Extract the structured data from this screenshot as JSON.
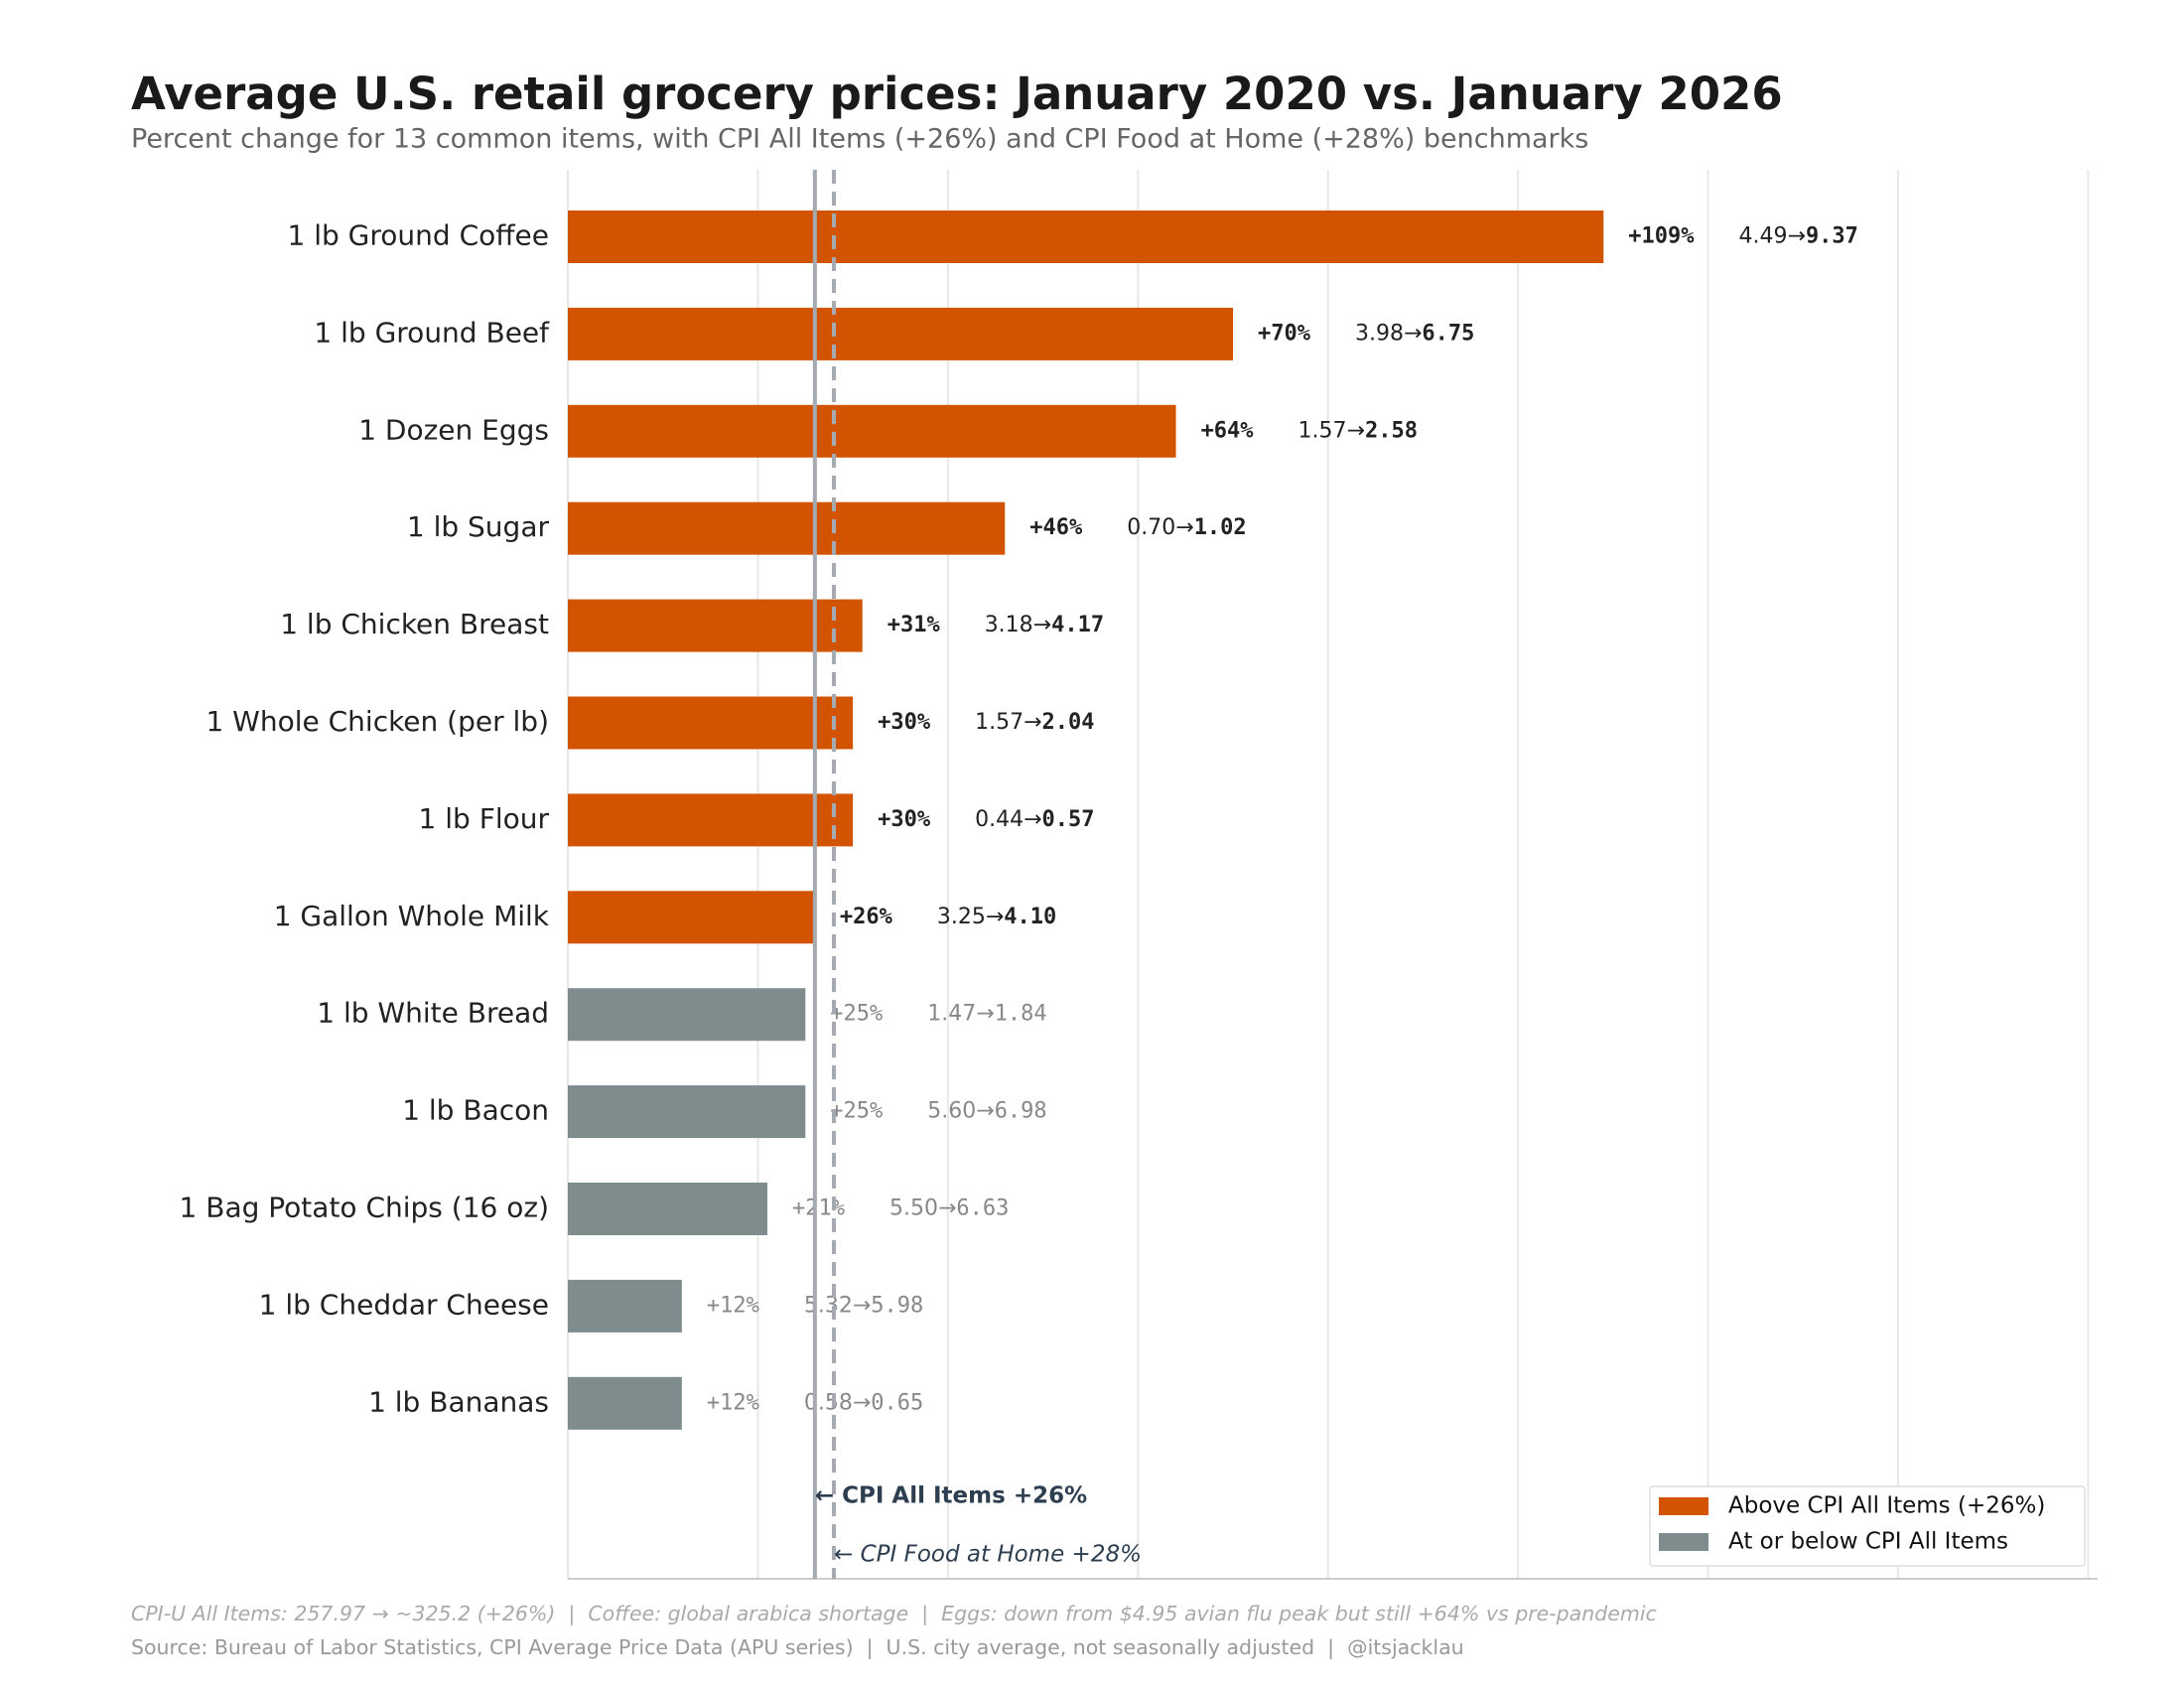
{
  "chart_data": {
    "type": "barh",
    "title": "Average U.S. retail grocery prices: January 2020 vs. January 2026",
    "subtitle": "Percent change for 13 common items, with CPI All Items (+26%) and CPI Food at Home (+28%) benchmarks",
    "categories": [
      "1 lb Ground Coffee",
      "1 lb Ground Beef",
      "1 Dozen Eggs",
      "1 lb Sugar",
      "1 lb Chicken Breast",
      "1 Whole Chicken (per lb)",
      "1 lb Flour",
      "1 Gallon Whole Milk",
      "1 lb White Bread",
      "1 lb Bacon",
      "1 Bag Potato Chips (16 oz)",
      "1 lb Cheddar Cheese",
      "1 lb Bananas"
    ],
    "values": [
      109,
      70,
      64,
      46,
      31,
      30,
      30,
      26,
      25,
      25,
      21,
      12,
      12
    ],
    "value_labels": [
      "+109%",
      "+70%",
      "+64%",
      "+46%",
      "+31%",
      "+30%",
      "+30%",
      "+26%",
      "+25%",
      "+25%",
      "+21%",
      "+12%",
      "+12%"
    ],
    "price_2020_labels": [
      "4.49",
      "3.98",
      "1.57",
      "0.70",
      "3.18",
      "1.57",
      "0.44",
      "3.25",
      "1.47",
      "5.60",
      "5.50",
      "5.32",
      "0.58"
    ],
    "price_2026_labels": [
      "9.37",
      "6.75",
      "2.58",
      "1.02",
      "4.17",
      "2.04",
      "0.57",
      "4.10",
      "1.84",
      "6.98",
      "6.63",
      "5.98",
      "0.65"
    ],
    "arrow": "→",
    "groups": [
      0,
      0,
      0,
      0,
      0,
      0,
      0,
      0,
      1,
      1,
      1,
      1,
      1
    ],
    "legend": [
      {
        "label": "Above CPI All Items (+26%)",
        "color": "#d35400"
      },
      {
        "label": "At or below CPI All Items",
        "color": "#7f8c8d"
      }
    ],
    "legend_position": "lower right",
    "xlim": [
      0,
      161
    ],
    "xticks": [
      0,
      20,
      40,
      60,
      80,
      100,
      120,
      140,
      160
    ],
    "grid": true,
    "reference_lines": [
      {
        "value": 26,
        "label": "← CPI All Items +26%",
        "style": "solid"
      },
      {
        "value": 28,
        "label": "← CPI Food at Home +28%",
        "style": "dashed"
      }
    ],
    "note": "CPI-U All Items: 257.97 → ~325.2 (+26%)  |  Coffee: global arabica shortage  |  Eggs: down from $4.95 avian flu peak but still +64% vs pre-pandemic",
    "source": "Source: Bureau of Labor Statistics, CPI Average Price Data (APU series)  |  U.S. city average, not seasonally adjusted  |  @itsjacklau"
  }
}
